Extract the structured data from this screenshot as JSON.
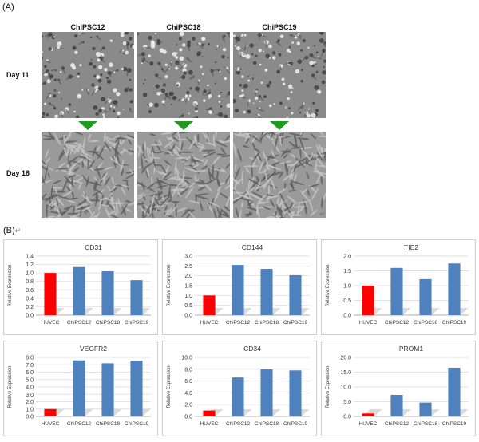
{
  "figure": {
    "panel_a_label": "(A)",
    "panel_b_label": "(B)",
    "return_mark_a": "↵",
    "return_mark_b": "↵",
    "columns": [
      "ChiPSC12",
      "ChiPSC18",
      "ChiPSC19"
    ],
    "rows": [
      "Day 11",
      "Day 16"
    ]
  },
  "colors": {
    "arrow": "#1f9b1f",
    "huvec_bar": "#ff0000",
    "ipsc_bar": "#4f81bd"
  },
  "chart_data": [
    {
      "type": "bar",
      "title": "CD31",
      "ylabel": "Relative Expression",
      "categories": [
        "HUVEC",
        "ChiPSC12",
        "ChiPSC18",
        "ChiPSC19"
      ],
      "values": [
        1.0,
        1.14,
        1.04,
        0.83
      ],
      "ylim": [
        0,
        1.4
      ],
      "yticks": [
        "0.0",
        "0.2",
        "0.4",
        "0.6",
        "0.8",
        "1.0",
        "1.2",
        "1.4"
      ],
      "grid": true
    },
    {
      "type": "bar",
      "title": "CD144",
      "ylabel": "Relative Expression",
      "categories": [
        "HUVEC",
        "ChiPSC12",
        "ChiPSC18",
        "ChiPSC19"
      ],
      "values": [
        1.0,
        2.55,
        2.35,
        2.03
      ],
      "ylim": [
        0,
        3.0
      ],
      "yticks": [
        "0.0",
        "0.5",
        "1.0",
        "1.5",
        "2.0",
        "2.5",
        "3.0"
      ],
      "grid": true
    },
    {
      "type": "bar",
      "title": "TIE2",
      "ylabel": "Relative Expression",
      "categories": [
        "HUVEC",
        "ChiPSC12",
        "ChiPSC18",
        "ChiPSC19"
      ],
      "values": [
        1.0,
        1.6,
        1.22,
        1.75
      ],
      "ylim": [
        0,
        2.0
      ],
      "yticks": [
        "0.0",
        "0.5",
        "1.0",
        "1.5",
        "2.0"
      ],
      "grid": true
    },
    {
      "type": "bar",
      "title": "VEGFR2",
      "ylabel": "Relative Expression",
      "categories": [
        "HUVEC",
        "ChiPSC12",
        "ChiPSC18",
        "ChiPSC19"
      ],
      "values": [
        1.0,
        7.6,
        7.2,
        7.55
      ],
      "ylim": [
        0,
        8.0
      ],
      "yticks": [
        "0.0",
        "1.0",
        "2.0",
        "3.0",
        "4.0",
        "5.0",
        "6.0",
        "7.0",
        "8.0"
      ],
      "grid": true
    },
    {
      "type": "bar",
      "title": "CD34",
      "ylabel": "Relative Expression",
      "categories": [
        "HUVEC",
        "ChiPSC12",
        "ChiPSC18",
        "ChiPSC19"
      ],
      "values": [
        1.0,
        6.6,
        8.0,
        7.8
      ],
      "ylim": [
        0,
        10.0
      ],
      "yticks": [
        "0.0",
        "2.0",
        "4.0",
        "6.0",
        "8.0",
        "10.0"
      ],
      "grid": true
    },
    {
      "type": "bar",
      "title": "PROM1",
      "ylabel": "Relative Expression",
      "categories": [
        "HUVEC",
        "ChiPSC12",
        "ChiPSC18",
        "ChiPSC19"
      ],
      "values": [
        1.0,
        7.3,
        4.7,
        16.5
      ],
      "ylim": [
        0,
        20.0
      ],
      "yticks": [
        "0.0",
        "5.0",
        "10.0",
        "15.0",
        "20.0"
      ],
      "grid": true
    }
  ]
}
